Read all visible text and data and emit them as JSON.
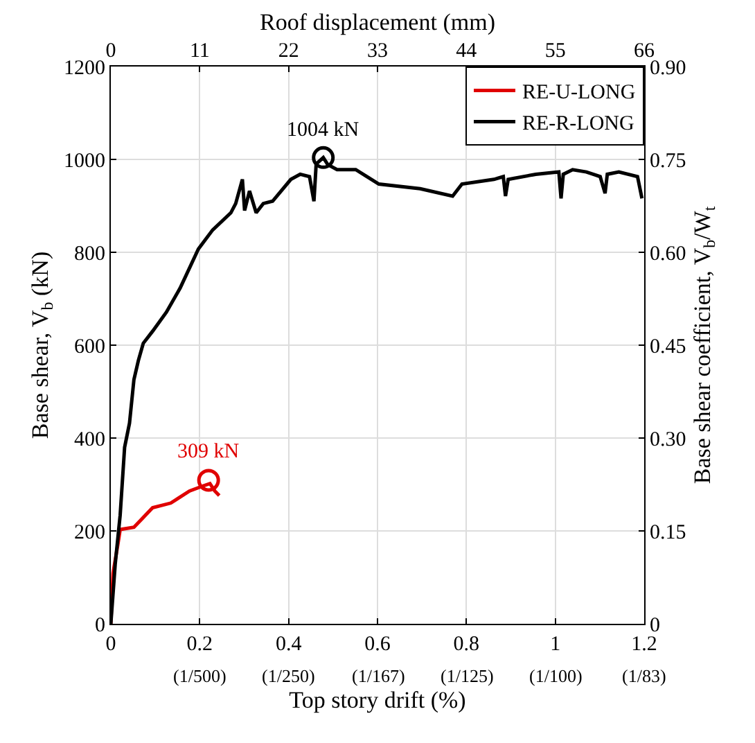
{
  "chart_data": {
    "type": "line",
    "xlabel": "Top story drift (%)",
    "ylabel": "Base shear, V$_{b}$ (kN)",
    "x2label": "Roof displacement (mm)",
    "y2label": "Base shear coefficient, V$_{b}$/W$_{t}$",
    "xlim": [
      0,
      1.2
    ],
    "xticks": [
      0,
      0.2,
      0.4,
      0.6,
      0.8,
      1,
      1.2
    ],
    "x2lim": [
      0,
      66
    ],
    "x2ticks": [
      0,
      11,
      22,
      33,
      44,
      55,
      66
    ],
    "ylim": [
      0,
      1200
    ],
    "yticks": [
      0,
      200,
      400,
      600,
      800,
      1000,
      1200
    ],
    "y2lim": [
      0,
      0.9
    ],
    "y2ticks": [
      0,
      {
        "value": 0.15,
        "label": "0.15"
      },
      {
        "value": 0.3,
        "label": "0.30"
      },
      {
        "value": 0.45,
        "label": "0.45"
      },
      {
        "value": 0.6,
        "label": "0.60"
      },
      {
        "value": 0.75,
        "label": "0.75"
      },
      {
        "value": 0.9,
        "label": "0.90"
      }
    ],
    "grid": true,
    "legend": "top right",
    "line_style": "solid",
    "series": [
      {
        "name": "RE-U-LONG",
        "color": "#e00000",
        "x": [
          0,
          0.005,
          0.016,
          0.021,
          0.052,
          0.068,
          0.078,
          0.094,
          0.135,
          0.177,
          0.208,
          0.223,
          0.234,
          0.244
        ],
        "values": [
          0,
          109,
          172,
          203,
          208,
          224,
          234,
          250,
          260,
          286,
          297,
          302,
          286,
          276
        ]
      },
      {
        "name": "RE-R-LONG",
        "color": "#000000",
        "x": [
          0,
          0.01,
          0.021,
          0.031,
          0.042,
          0.052,
          0.062,
          0.073,
          0.094,
          0.125,
          0.156,
          0.197,
          0.229,
          0.27,
          0.281,
          0.296,
          0.301,
          0.312,
          0.327,
          0.343,
          0.364,
          0.405,
          0.426,
          0.447,
          0.457,
          0.462,
          0.478,
          0.488,
          0.509,
          0.551,
          0.603,
          0.696,
          0.769,
          0.79,
          0.862,
          0.883,
          0.888,
          0.894,
          0.956,
          1.008,
          1.013,
          1.018,
          1.039,
          1.07,
          1.101,
          1.112,
          1.117,
          1.143,
          1.185,
          1.195
        ],
        "values": [
          0,
          130,
          234,
          380,
          432,
          526,
          567,
          604,
          630,
          671,
          723,
          807,
          848,
          885,
          905,
          957,
          890,
          932,
          885,
          905,
          910,
          957,
          968,
          963,
          910,
          990,
          1004,
          989,
          978,
          978,
          947,
          937,
          921,
          947,
          957,
          963,
          921,
          957,
          968,
          973,
          916,
          968,
          978,
          973,
          963,
          927,
          968,
          973,
          963,
          916
        ]
      },
      {
        "type": "scatter",
        "color": "#e00000",
        "marker": "circle",
        "x": [
          0.22
        ],
        "values": [
          309
        ]
      },
      {
        "type": "scatter",
        "color": "#000000",
        "marker": "circle",
        "x": [
          0.478
        ],
        "values": [
          1004
        ]
      }
    ],
    "annotations": [
      {
        "text": "309 kN",
        "x": 0.22,
        "y": 309
      },
      {
        "text": "1004 kN",
        "x": 0.478,
        "y": 1004
      },
      "(1/500)",
      "(1/250)",
      "(1/167)",
      "(1/125)",
      "(1/100)",
      "(1/83)"
    ]
  }
}
